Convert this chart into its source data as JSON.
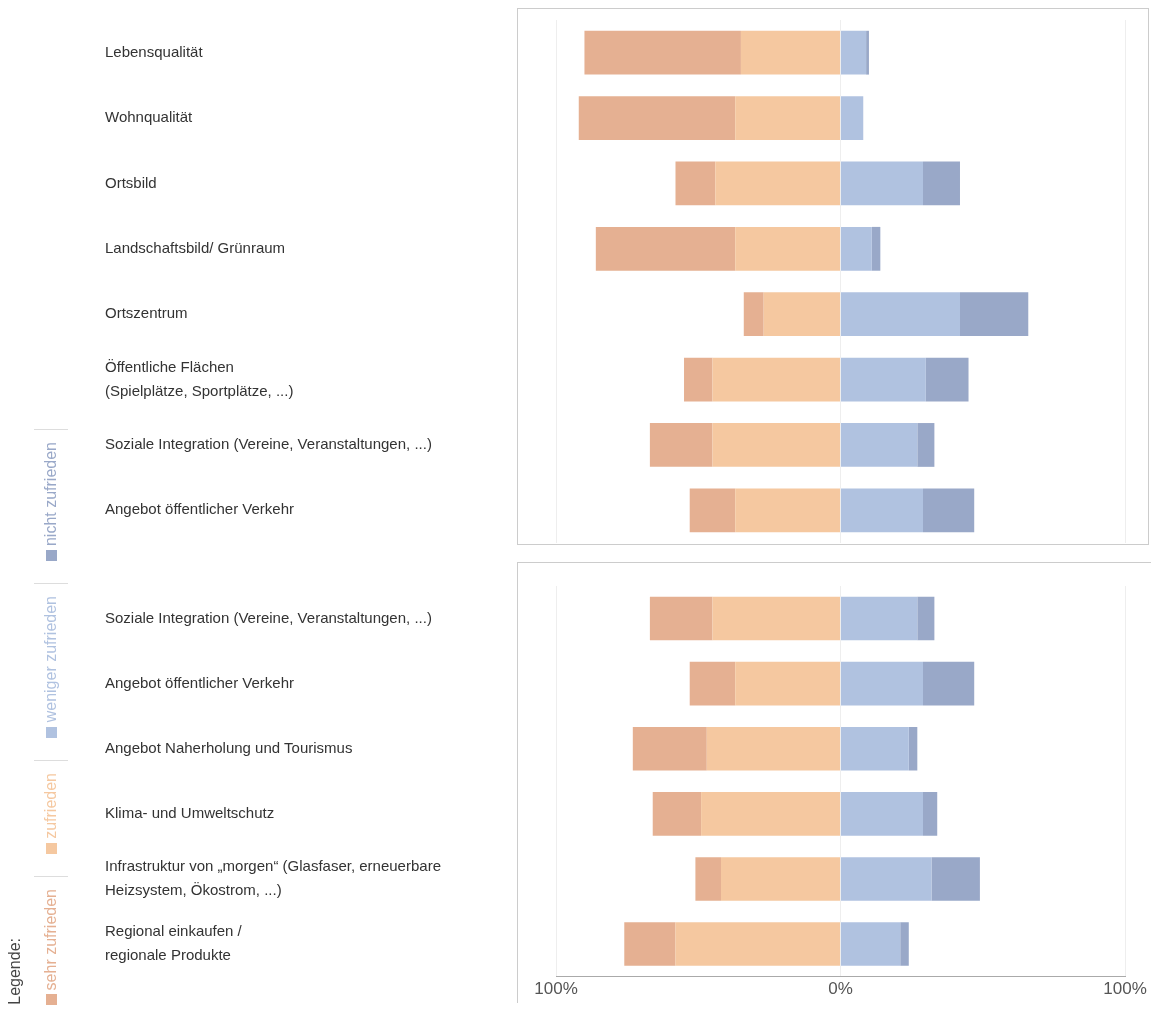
{
  "chart_data": [
    {
      "type": "bar",
      "orientation": "horizontal",
      "stacked": true,
      "categories": [
        "Lebensqualität",
        "Wohnqualität",
        "Ortsbild",
        "Landschaftsbild/ Grünraum",
        "Ortszentrum",
        "Öffentliche Flächen\n(Spielplätze, Sportplätze, ...)",
        "Soziale Integration (Vereine, Veranstaltungen, ...)",
        "Angebot öffentlicher Verkehr"
      ],
      "series": [
        {
          "color": "#f5c8a0",
          "values": [
            -35,
            -37,
            -44,
            -37,
            -27,
            -45,
            -45,
            -37
          ]
        },
        {
          "color": "#e5b092",
          "values": [
            -55,
            -55,
            -14,
            -49,
            -7,
            -10,
            -22,
            -16
          ]
        },
        {
          "color": "#b0c2e0",
          "values": [
            9,
            8,
            29,
            11,
            42,
            30,
            27,
            29
          ]
        },
        {
          "color": "#99a8c8",
          "values": [
            1,
            0,
            13,
            3,
            24,
            15,
            6,
            18
          ]
        }
      ],
      "xlim": [
        -100,
        100
      ],
      "xticks": [
        -100,
        0,
        100
      ],
      "grid": "x",
      "tick_labels": "y"
    },
    {
      "type": "bar",
      "orientation": "horizontal",
      "stacked": true,
      "categories": [
        "Soziale Integration (Vereine, Veranstaltungen, ...)",
        "Angebot öffentlicher Verkehr",
        "Angebot Naherholung und Tourismus",
        "Klima- und Umweltschutz",
        "Infrastruktur von „morgen“ (Glasfaser, erneuerbare\nHeizsystem, Ökostrom, ...)",
        "Regional einkaufen /\nregionale Produkte"
      ],
      "series": [
        {
          "name": "zufrieden",
          "color": "#f5c8a0",
          "values": [
            -45,
            -37,
            -47,
            -49,
            -42,
            -58
          ]
        },
        {
          "name": "sehr zufrieden",
          "color": "#e5b092",
          "values": [
            -22,
            -16,
            -26,
            -17,
            -9,
            -18
          ]
        },
        {
          "name": "weniger zufrieden",
          "color": "#b0c2e0",
          "values": [
            27,
            29,
            24,
            29,
            32,
            21
          ]
        },
        {
          "name": "nicht zufrieden",
          "color": "#99a8c8",
          "values": [
            6,
            18,
            3,
            5,
            17,
            3
          ]
        }
      ],
      "xlim": [
        -100,
        100
      ],
      "xticks": [
        {
          "value": -100,
          "label": "100%"
        },
        {
          "value": 0,
          "label": "0%"
        },
        {
          "value": 100,
          "label": "100%"
        }
      ],
      "grid": "x",
      "legend": "left",
      "legend_title": "Legende:"
    }
  ]
}
